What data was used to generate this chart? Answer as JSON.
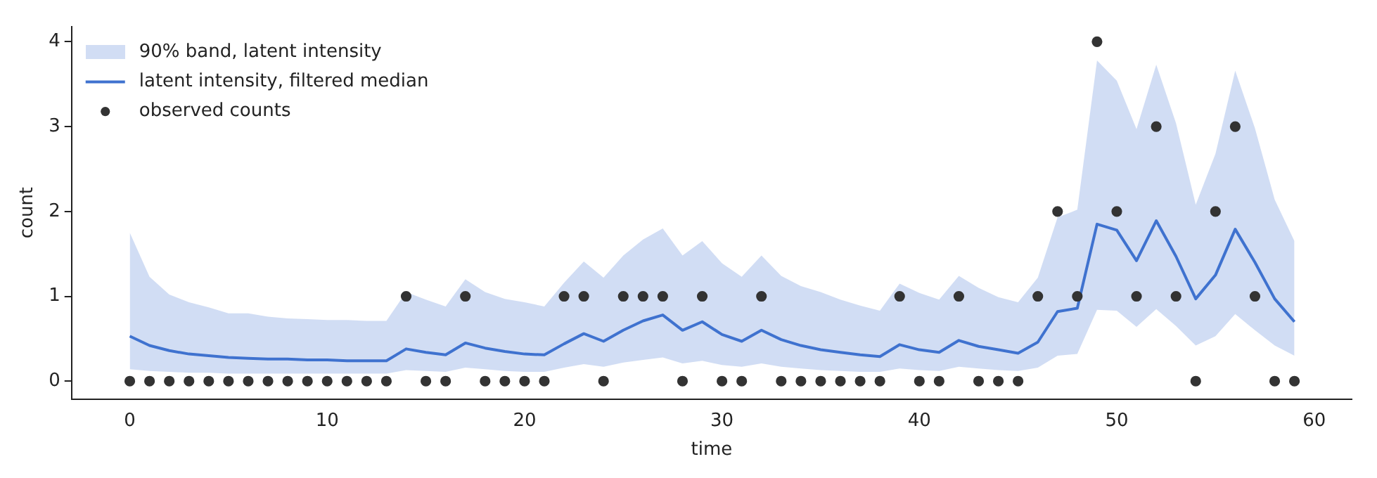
{
  "chart_data": {
    "type": "line",
    "xlabel": "time",
    "ylabel": "count",
    "annotations": [
      "90% band, latent intensity"
    ],
    "x": [
      0,
      1,
      2,
      3,
      4,
      5,
      6,
      7,
      8,
      9,
      10,
      11,
      12,
      13,
      14,
      15,
      16,
      17,
      18,
      19,
      20,
      21,
      22,
      23,
      24,
      25,
      26,
      27,
      28,
      29,
      30,
      31,
      32,
      33,
      34,
      35,
      36,
      37,
      38,
      39,
      40,
      41,
      42,
      43,
      44,
      45,
      46,
      47,
      48,
      49,
      50,
      51,
      52,
      53,
      54,
      55,
      56,
      57,
      58,
      59
    ],
    "series": [
      {
        "name": "latent intensity, filtered median",
        "color": "#3f72cf",
        "values": [
          0.53,
          0.42,
          0.36,
          0.32,
          0.3,
          0.28,
          0.27,
          0.26,
          0.26,
          0.25,
          0.25,
          0.24,
          0.24,
          0.24,
          0.38,
          0.34,
          0.31,
          0.45,
          0.39,
          0.35,
          0.32,
          0.31,
          0.44,
          0.56,
          0.47,
          0.6,
          0.71,
          0.78,
          0.6,
          0.7,
          0.55,
          0.47,
          0.6,
          0.49,
          0.42,
          0.37,
          0.34,
          0.31,
          0.29,
          0.43,
          0.37,
          0.34,
          0.48,
          0.41,
          0.37,
          0.33,
          0.46,
          0.82,
          0.86,
          1.85,
          1.78,
          1.42,
          1.89,
          1.47,
          0.97,
          1.25,
          1.79,
          1.4,
          0.97,
          0.7
        ],
        "lower": [
          0.14,
          0.12,
          0.11,
          0.1,
          0.1,
          0.09,
          0.09,
          0.09,
          0.09,
          0.09,
          0.09,
          0.09,
          0.09,
          0.09,
          0.13,
          0.12,
          0.11,
          0.16,
          0.14,
          0.12,
          0.11,
          0.11,
          0.16,
          0.2,
          0.17,
          0.22,
          0.25,
          0.28,
          0.21,
          0.24,
          0.19,
          0.17,
          0.21,
          0.17,
          0.15,
          0.13,
          0.12,
          0.11,
          0.11,
          0.15,
          0.13,
          0.12,
          0.17,
          0.15,
          0.13,
          0.12,
          0.16,
          0.3,
          0.32,
          0.84,
          0.83,
          0.64,
          0.85,
          0.65,
          0.42,
          0.53,
          0.79,
          0.6,
          0.42,
          0.3
        ],
        "upper": [
          1.75,
          1.23,
          1.02,
          0.93,
          0.87,
          0.8,
          0.8,
          0.76,
          0.74,
          0.73,
          0.72,
          0.72,
          0.71,
          0.71,
          1.05,
          0.96,
          0.88,
          1.2,
          1.05,
          0.97,
          0.93,
          0.88,
          1.16,
          1.41,
          1.22,
          1.48,
          1.67,
          1.8,
          1.48,
          1.65,
          1.39,
          1.23,
          1.48,
          1.24,
          1.12,
          1.05,
          0.96,
          0.89,
          0.83,
          1.15,
          1.04,
          0.96,
          1.24,
          1.1,
          0.99,
          0.93,
          1.22,
          1.93,
          2.02,
          3.78,
          3.54,
          2.97,
          3.73,
          3.04,
          2.08,
          2.68,
          3.66,
          2.98,
          2.14,
          1.65
        ]
      },
      {
        "name": "observed counts",
        "type": "scatter",
        "color": "#333333",
        "values": [
          0,
          0,
          0,
          0,
          0,
          0,
          0,
          0,
          0,
          0,
          0,
          0,
          0,
          0,
          1,
          0,
          0,
          1,
          0,
          0,
          0,
          0,
          1,
          1,
          0,
          1,
          1,
          1,
          0,
          1,
          0,
          0,
          1,
          0,
          0,
          0,
          0,
          0,
          0,
          1,
          0,
          0,
          1,
          0,
          0,
          0,
          1,
          2,
          1,
          4,
          2,
          1,
          3,
          1,
          0,
          2,
          3,
          1,
          0,
          0
        ]
      }
    ],
    "xlim": [
      -2.95,
      61.9
    ],
    "xticks": [
      0,
      10,
      20,
      30,
      40,
      50,
      60
    ],
    "ylim": [
      -0.21,
      4.18
    ],
    "yticks": [
      0,
      1,
      2,
      3,
      4
    ],
    "grid": false,
    "legend": "top left",
    "line_style": "solid"
  }
}
